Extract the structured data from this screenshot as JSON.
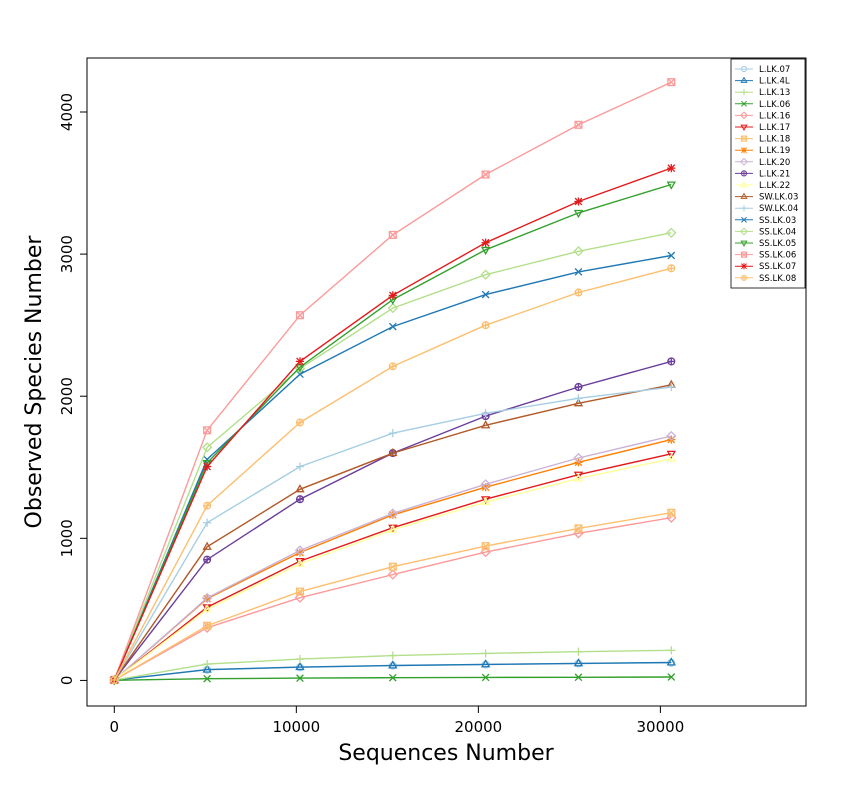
{
  "chart_data": {
    "type": "line",
    "xlabel": "Sequences Number",
    "ylabel": "Observed Species Number",
    "xlim": [
      -1500,
      38000
    ],
    "ylim": [
      -180,
      4380
    ],
    "xticks": [
      0,
      10000,
      20000,
      30000
    ],
    "xtick_labels": [
      "0",
      "10000",
      "20000",
      "30000"
    ],
    "yticks": [
      0,
      1000,
      2000,
      3000,
      4000
    ],
    "ytick_labels": [
      "0",
      "1000",
      "2000",
      "3000",
      "4000"
    ],
    "legend_position": "top-right",
    "x": [
      0,
      5100,
      10200,
      15300,
      20400,
      25500,
      30600
    ],
    "series": [
      {
        "name": "L.LK.07",
        "color": "#a6cee3",
        "marker": "circle",
        "values": [
          2,
          75,
          92,
          104,
          112,
          119,
          124
        ]
      },
      {
        "name": "L.LK.4L",
        "color": "#1f78b4",
        "marker": "triangle",
        "values": [
          2,
          76,
          94,
          105,
          113,
          120,
          126
        ]
      },
      {
        "name": "L.LK.13",
        "color": "#b2df8a",
        "marker": "plus",
        "values": [
          2,
          115,
          150,
          175,
          190,
          202,
          212
        ]
      },
      {
        "name": "L.LK.06",
        "color": "#33a02c",
        "marker": "cross",
        "values": [
          1,
          12,
          16,
          19,
          21,
          22,
          24
        ]
      },
      {
        "name": "L.LK.16",
        "color": "#fb9a99",
        "marker": "diamond",
        "values": [
          3,
          370,
          582,
          745,
          903,
          1035,
          1145
        ]
      },
      {
        "name": "L.LK.17",
        "color": "#e31a1c",
        "marker": "triangle-down",
        "values": [
          3,
          515,
          840,
          1075,
          1275,
          1448,
          1595
        ]
      },
      {
        "name": "L.LK.18",
        "color": "#fdbf6f",
        "marker": "box-x",
        "values": [
          3,
          385,
          625,
          800,
          945,
          1070,
          1180
        ]
      },
      {
        "name": "L.LK.19",
        "color": "#ff7f00",
        "marker": "star",
        "values": [
          3,
          575,
          900,
          1165,
          1360,
          1535,
          1695
        ]
      },
      {
        "name": "L.LK.20",
        "color": "#cab2d6",
        "marker": "diamond",
        "values": [
          3,
          580,
          915,
          1175,
          1380,
          1565,
          1720
        ]
      },
      {
        "name": "L.LK.21",
        "color": "#6a3d9a",
        "marker": "circle-plus",
        "values": [
          3,
          850,
          1275,
          1600,
          1860,
          2065,
          2245
        ]
      },
      {
        "name": "L.LK.22",
        "color": "#ffff99",
        "marker": "triangle",
        "values": [
          3,
          500,
          820,
          1060,
          1255,
          1420,
          1560
        ]
      },
      {
        "name": "SW.LK.03",
        "color": "#b15928",
        "marker": "triangle",
        "values": [
          3,
          940,
          1345,
          1600,
          1795,
          1950,
          2080
        ]
      },
      {
        "name": "SW.LK.04",
        "color": "#a6cee3",
        "marker": "plus",
        "values": [
          3,
          1110,
          1505,
          1740,
          1880,
          1985,
          2065
        ]
      },
      {
        "name": "SS.LK.03",
        "color": "#1f78b4",
        "marker": "cross",
        "values": [
          3,
          1555,
          2155,
          2490,
          2715,
          2875,
          2990
        ]
      },
      {
        "name": "SS.LK.04",
        "color": "#b2df8a",
        "marker": "diamond",
        "values": [
          3,
          1640,
          2195,
          2620,
          2855,
          3020,
          3150
        ]
      },
      {
        "name": "SS.LK.05",
        "color": "#33a02c",
        "marker": "triangle-down",
        "values": [
          3,
          1530,
          2205,
          2680,
          3030,
          3290,
          3490
        ]
      },
      {
        "name": "SS.LK.06",
        "color": "#fb9a99",
        "marker": "box-x",
        "values": [
          3,
          1760,
          2570,
          3135,
          3560,
          3910,
          4210
        ]
      },
      {
        "name": "SS.LK.07",
        "color": "#e31a1c",
        "marker": "star",
        "values": [
          3,
          1505,
          2245,
          2710,
          3080,
          3370,
          3605
        ]
      },
      {
        "name": "SS.LK.08",
        "color": "#fdbf6f",
        "marker": "circle-plus",
        "values": [
          3,
          1230,
          1815,
          2210,
          2500,
          2730,
          2900
        ]
      }
    ]
  }
}
